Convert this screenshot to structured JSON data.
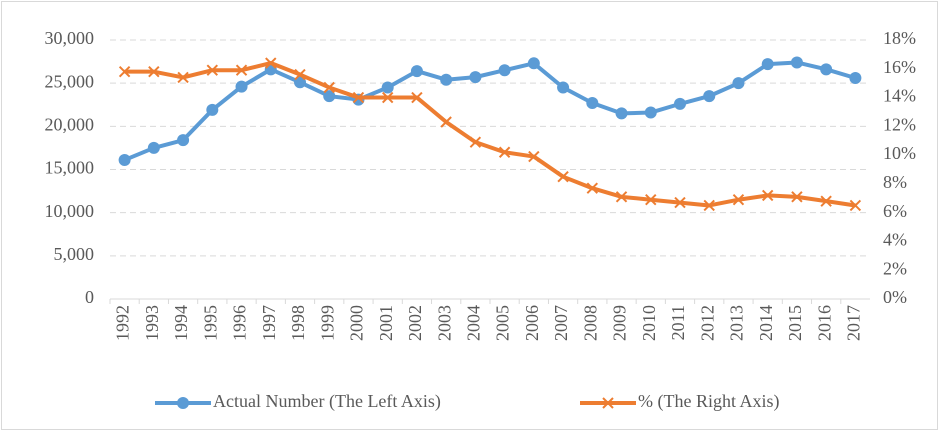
{
  "chart_data": {
    "type": "line",
    "categories": [
      "1992",
      "1993",
      "1994",
      "1995",
      "1996",
      "1997",
      "1998",
      "1999",
      "2000",
      "2001",
      "2002",
      "2003",
      "2004",
      "2005",
      "2006",
      "2007",
      "2008",
      "2009",
      "2010",
      "2011",
      "2012",
      "2013",
      "2014",
      "2015",
      "2016",
      "2017"
    ],
    "series": [
      {
        "name": "Actual Number (The Left Axis)",
        "color": "#5b9bd5",
        "marker": "circle",
        "values": [
          16100,
          17500,
          18400,
          21900,
          24600,
          26600,
          25100,
          23500,
          23100,
          24500,
          26400,
          25400,
          25700,
          26500,
          27300,
          24500,
          22700,
          21500,
          21600,
          22600,
          23500,
          25000,
          27200,
          27400,
          26600,
          25600
        ]
      },
      {
        "name": "% (The Right Axis)",
        "color": "#ed7d31",
        "marker": "x",
        "axis": "y2",
        "values": [
          15.8,
          15.8,
          15.4,
          15.9,
          15.9,
          16.4,
          15.6,
          14.7,
          14.0,
          14.0,
          14.0,
          12.3,
          10.9,
          10.2,
          9.9,
          8.5,
          7.7,
          7.1,
          6.9,
          6.7,
          6.5,
          6.9,
          7.2,
          7.1,
          6.8,
          6.5
        ]
      }
    ],
    "ylim": [
      0,
      30000
    ],
    "yticks": [
      0,
      {
        "value": 5000,
        "label": "5,000"
      },
      {
        "value": 10000,
        "label": "10,000"
      },
      {
        "value": 15000,
        "label": "15,000"
      },
      {
        "value": 20000,
        "label": "20,000"
      },
      {
        "value": 25000,
        "label": "25,000"
      },
      {
        "value": 30000,
        "label": "30,000"
      }
    ],
    "y2lim": [
      0,
      18
    ],
    "y2ticks": [
      {
        "value": 0,
        "label": "0%"
      },
      {
        "value": 2,
        "label": "2%"
      },
      {
        "value": 4,
        "label": "4%"
      },
      {
        "value": 6,
        "label": "6%"
      },
      {
        "value": 8,
        "label": "8%"
      },
      {
        "value": 10,
        "label": "10%"
      },
      {
        "value": 12,
        "label": "12%"
      },
      {
        "value": 14,
        "label": "14%"
      },
      {
        "value": 16,
        "label": "16%"
      },
      {
        "value": 18,
        "label": "18%"
      }
    ],
    "grid": true,
    "legend": "bottom"
  }
}
